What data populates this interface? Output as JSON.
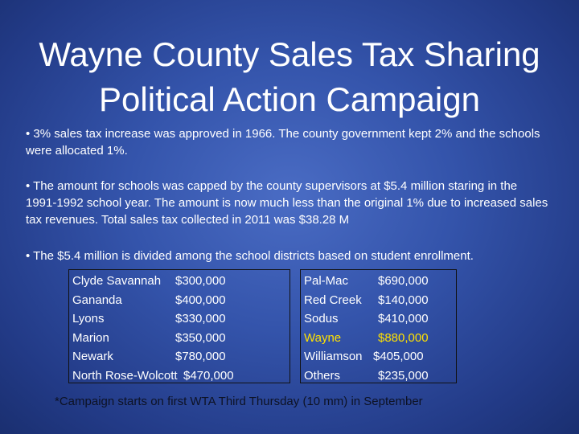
{
  "slide": {
    "title_line1": "Wayne County Sales Tax Sharing",
    "title_line2": "Political Action Campaign",
    "bullets": [
      "• 3% sales tax increase was approved in 1966.  The county government kept 2% and the schools were allocated 1%.",
      "• The amount for schools was capped by the county supervisors at $5.4 million staring in the 1991-1992 school year. The amount is now much less than the original 1% due to increased sales tax revenues.  Total sales tax collected in 2011 was $38.28 M",
      "• The $5.4 million is divided among the school districts based on student enrollment."
    ],
    "left_table": [
      {
        "name": "Clyde Savannah",
        "amount": "$300,000"
      },
      {
        "name": "Gananda",
        "amount": "$400,000"
      },
      {
        "name": "Lyons",
        "amount": "$330,000"
      },
      {
        "name": "Marion",
        "amount": "$350,000"
      },
      {
        "name": "Newark",
        "amount": "$780,000"
      },
      {
        "name": "North Rose-Wolcott",
        "amount": "$470,000"
      }
    ],
    "right_table": [
      {
        "name": "Pal-Mac",
        "amount": "$690,000"
      },
      {
        "name": "Red Creek",
        "amount": "$140,000"
      },
      {
        "name": "Sodus",
        "amount": "$410,000"
      },
      {
        "name": "Wayne",
        "amount": "$880,000"
      },
      {
        "name": "Williamson",
        "amount": "$405,000"
      },
      {
        "name": "Others",
        "amount": "$235,000"
      }
    ],
    "footnote": "*Campaign starts on first WTA Third Thursday (10 mm) in September",
    "colors": {
      "background": "#3454ab",
      "text": "#ffffff",
      "highlight": "#ffe100",
      "footnote": "#0d1224"
    }
  }
}
